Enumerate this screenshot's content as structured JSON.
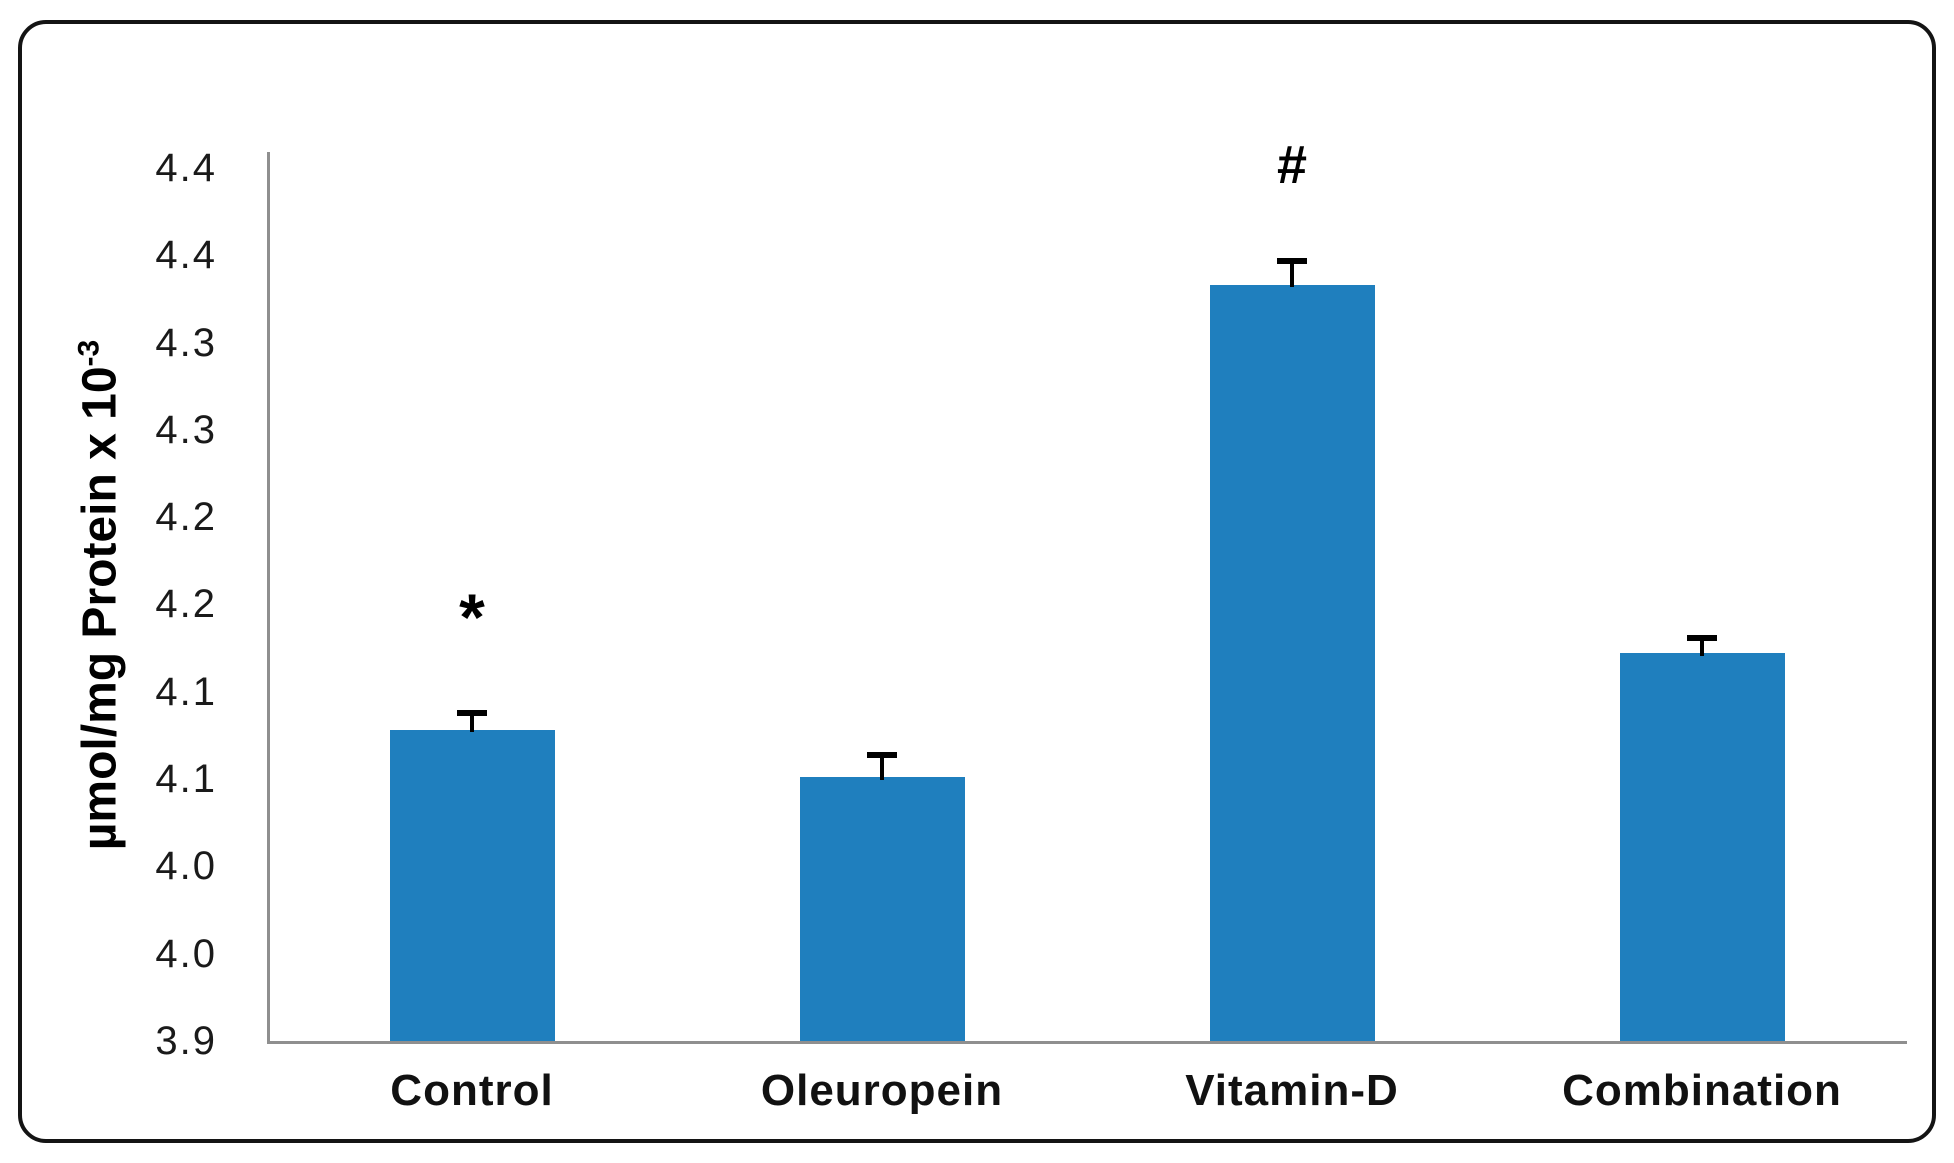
{
  "figure": {
    "border_color": "#141414",
    "background_color": "#ffffff"
  },
  "chart_data": {
    "type": "bar",
    "title": "",
    "xlabel": "",
    "ylabel": {
      "text": "µmol/mg Protein x 10",
      "sup": "-3"
    },
    "categories": [
      "Control",
      "Oleuropein",
      "Vitamin-D",
      "Combination"
    ],
    "values": [
      4.078,
      4.051,
      4.333,
      4.122
    ],
    "errors_plus": [
      0.01,
      0.013,
      0.014,
      0.009
    ],
    "annotations": [
      "*",
      "",
      "#",
      ""
    ],
    "ylim": [
      3.9,
      4.4
    ],
    "ytick_step": 0.05,
    "yticks": [
      {
        "value": 4.4,
        "label": "4.4"
      },
      {
        "value": 4.35,
        "label": "4.4"
      },
      {
        "value": 4.3,
        "label": "4.3"
      },
      {
        "value": 4.25,
        "label": "4.3"
      },
      {
        "value": 4.2,
        "label": "4.2"
      },
      {
        "value": 4.15,
        "label": "4.2"
      },
      {
        "value": 4.1,
        "label": "4.1"
      },
      {
        "value": 4.05,
        "label": "4.1"
      },
      {
        "value": 4.0,
        "label": "4.0"
      },
      {
        "value": 3.95,
        "label": "4.0"
      },
      {
        "value": 3.9,
        "label": "3.9"
      }
    ],
    "bar_color": "#1F7FBE",
    "error_bar_color": "#000000",
    "axis_line_color": "#8f8f8f",
    "grid": false,
    "legend": false
  }
}
